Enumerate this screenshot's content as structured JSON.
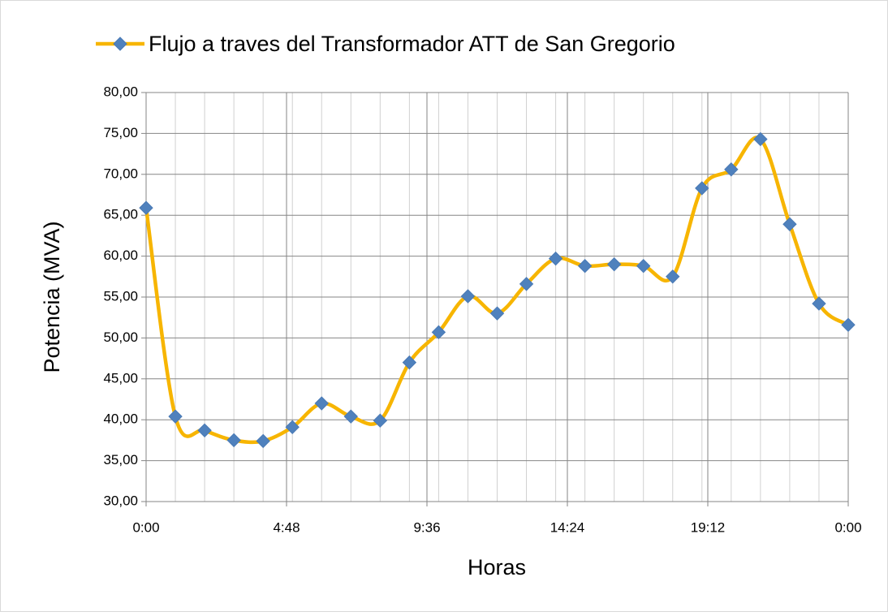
{
  "chart_data": {
    "type": "line",
    "title": "Flujo a traves del Transformador ATT de San Gregorio",
    "x_label": "Horas",
    "y_label": "Potencia (MVA)",
    "x": [
      0,
      1,
      2,
      3,
      4,
      5,
      6,
      7,
      8,
      9,
      10,
      11,
      12,
      13,
      14,
      15,
      16,
      17,
      18,
      19,
      20,
      21,
      22,
      23,
      24
    ],
    "series": [
      {
        "name": "Flujo a traves del Transformador ATT de San Gregorio",
        "color": "#f7b500",
        "marker_color": "#4f81bd",
        "values": [
          65.9,
          40.4,
          38.7,
          37.5,
          37.4,
          39.1,
          42.0,
          40.4,
          39.9,
          47.0,
          50.7,
          55.1,
          53.0,
          56.6,
          59.7,
          58.8,
          59.0,
          58.8,
          57.5,
          68.3,
          70.6,
          74.3,
          63.9,
          54.2,
          51.6
        ]
      }
    ],
    "xlim": [
      0,
      24
    ],
    "xticks": [
      {
        "value": 0,
        "label": "0:00"
      },
      {
        "value": 4.8,
        "label": "4:48"
      },
      {
        "value": 9.6,
        "label": "9:36"
      },
      {
        "value": 14.4,
        "label": "14:24"
      },
      {
        "value": 19.2,
        "label": "19:12"
      },
      {
        "value": 24,
        "label": "0:00"
      }
    ],
    "ylim": [
      30,
      80
    ],
    "yticks": [
      {
        "value": 30,
        "label": "30,00"
      },
      {
        "value": 35,
        "label": "35,00"
      },
      {
        "value": 40,
        "label": "40,00"
      },
      {
        "value": 45,
        "label": "45,00"
      },
      {
        "value": 50,
        "label": "50,00"
      },
      {
        "value": 55,
        "label": "55,00"
      },
      {
        "value": 60,
        "label": "60,00"
      },
      {
        "value": 65,
        "label": "65,00"
      },
      {
        "value": 70,
        "label": "70,00"
      },
      {
        "value": 75,
        "label": "75,00"
      },
      {
        "value": 80,
        "label": "80,00"
      }
    ],
    "grid": true,
    "legend": "top",
    "smooth": true
  }
}
